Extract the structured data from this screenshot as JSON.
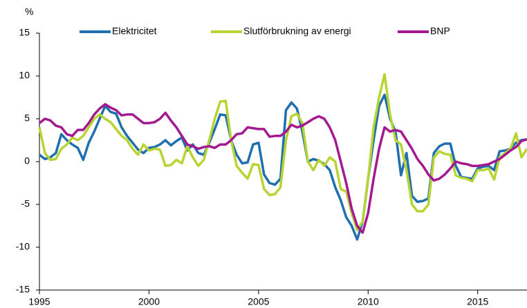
{
  "chart_data": {
    "type": "line",
    "y_label": "%",
    "x": [
      1995,
      1995.25,
      1995.5,
      1995.75,
      1996,
      1996.25,
      1996.5,
      1996.75,
      1997,
      1997.25,
      1997.5,
      1997.75,
      1998,
      1998.25,
      1998.5,
      1998.75,
      1999,
      1999.25,
      1999.5,
      1999.75,
      2000,
      2000.25,
      2000.5,
      2000.75,
      2001,
      2001.25,
      2001.5,
      2001.75,
      2002,
      2002.25,
      2002.5,
      2002.75,
      2003,
      2003.25,
      2003.5,
      2003.75,
      2004,
      2004.25,
      2004.5,
      2004.75,
      2005,
      2005.25,
      2005.5,
      2005.75,
      2006,
      2006.25,
      2006.5,
      2006.75,
      2007,
      2007.25,
      2007.5,
      2007.75,
      2008,
      2008.25,
      2008.5,
      2008.75,
      2009,
      2009.25,
      2009.5,
      2009.75,
      2010,
      2010.25,
      2010.5,
      2010.75,
      2011,
      2011.25,
      2011.5,
      2011.75,
      2012,
      2012.25,
      2012.5,
      2012.75,
      2013,
      2013.25,
      2013.5,
      2013.75,
      2014,
      2014.25,
      2014.5,
      2014.75,
      2015,
      2015.25,
      2015.5,
      2015.75,
      2016,
      2016.25,
      2016.5,
      2016.75,
      2017,
      2017.25
    ],
    "series": [
      {
        "name": "Elektricitet",
        "color": "#1f6fb0",
        "values": [
          0.8,
          0.3,
          0.5,
          1.0,
          3.2,
          2.5,
          2.0,
          1.6,
          0.2,
          2.2,
          3.5,
          5.0,
          6.5,
          5.8,
          5.6,
          4.0,
          3.0,
          2.2,
          1.4,
          1.0,
          1.6,
          1.7,
          2.0,
          2.5,
          1.9,
          2.4,
          2.8,
          1.3,
          2.0,
          1.0,
          0.8,
          2.2,
          3.8,
          5.5,
          5.4,
          2.5,
          0.8,
          -0.2,
          -0.1,
          2.0,
          2.2,
          -1.5,
          -2.5,
          -2.7,
          -2.0,
          6.0,
          6.9,
          6.2,
          3.5,
          0.0,
          0.3,
          0.1,
          -0.3,
          -1.0,
          -3.0,
          -4.5,
          -6.5,
          -7.5,
          -9.1,
          -7.0,
          -2.0,
          2.5,
          6.5,
          7.8,
          5.0,
          3.5,
          -1.6,
          1.0,
          -4.0,
          -4.7,
          -4.6,
          -4.3,
          1.0,
          1.8,
          2.1,
          2.1,
          -0.5,
          -1.8,
          -1.9,
          -2.0,
          -0.8,
          -0.6,
          -0.5,
          -1.0,
          1.2,
          1.3,
          1.5,
          2.2,
          2.5,
          2.6
        ]
      },
      {
        "name": "Slutförbrukning av energi",
        "color": "#b7d433",
        "values": [
          4.0,
          1.0,
          0.2,
          0.3,
          1.5,
          2.0,
          2.8,
          2.5,
          3.0,
          4.0,
          5.0,
          5.5,
          5.0,
          4.6,
          3.8,
          3.0,
          2.5,
          1.5,
          0.8,
          2.0,
          1.3,
          1.5,
          1.4,
          -0.5,
          -0.4,
          0.2,
          -0.2,
          1.8,
          0.5,
          -0.5,
          0.2,
          2.5,
          5.0,
          7.0,
          7.1,
          2.5,
          -0.5,
          -1.3,
          -2.0,
          -0.3,
          -0.4,
          -3.2,
          -3.9,
          -3.8,
          -3.0,
          2.5,
          5.3,
          5.6,
          4.5,
          0.0,
          -1.0,
          0.2,
          -0.5,
          0.5,
          0.0,
          -3.2,
          -3.5,
          -6.0,
          -8.0,
          -7.0,
          -2.0,
          4.0,
          7.5,
          10.2,
          5.5,
          2.5,
          2.0,
          -1.0,
          -5.0,
          -5.8,
          -5.8,
          -5.0,
          0.5,
          1.2,
          0.9,
          0.8,
          -1.6,
          -1.9,
          -2.0,
          -2.3,
          -1.0,
          -1.0,
          -0.8,
          -2.1,
          0.5,
          1.0,
          1.5,
          3.3,
          0.5,
          1.5
        ]
      },
      {
        "name": "BNP",
        "color": "#a3198f",
        "values": [
          4.5,
          5.0,
          4.8,
          4.2,
          4.0,
          3.2,
          3.0,
          3.7,
          3.7,
          4.5,
          5.5,
          6.2,
          6.7,
          6.3,
          6.0,
          5.4,
          5.5,
          5.5,
          5.0,
          4.5,
          4.5,
          4.6,
          5.0,
          5.7,
          4.8,
          4.0,
          3.0,
          2.0,
          1.8,
          1.5,
          1.7,
          1.8,
          1.6,
          2.0,
          2.0,
          2.5,
          3.2,
          3.3,
          4.0,
          3.9,
          3.8,
          3.8,
          2.9,
          3.0,
          3.0,
          3.5,
          4.3,
          4.0,
          4.2,
          4.6,
          5.0,
          5.3,
          5.0,
          4.0,
          2.5,
          0.0,
          -2.5,
          -5.5,
          -7.5,
          -8.3,
          -6.0,
          -2.0,
          1.5,
          4.0,
          3.5,
          3.7,
          3.5,
          2.5,
          1.5,
          0.3,
          -0.5,
          -1.5,
          -2.2,
          -2.0,
          -1.5,
          -0.8,
          0.0,
          -0.2,
          -0.3,
          -0.5,
          -0.5,
          -0.4,
          -0.3,
          0.0,
          0.3,
          0.8,
          1.3,
          1.7,
          2.4,
          2.6
        ]
      }
    ],
    "xlim": [
      1995,
      2017.25
    ],
    "xticks": [
      1995,
      2000,
      2005,
      2010,
      2015
    ],
    "ylim": [
      -15,
      15
    ],
    "yticks": [
      -15,
      -10,
      -5,
      0,
      5,
      10,
      15
    ],
    "legend": "top"
  }
}
